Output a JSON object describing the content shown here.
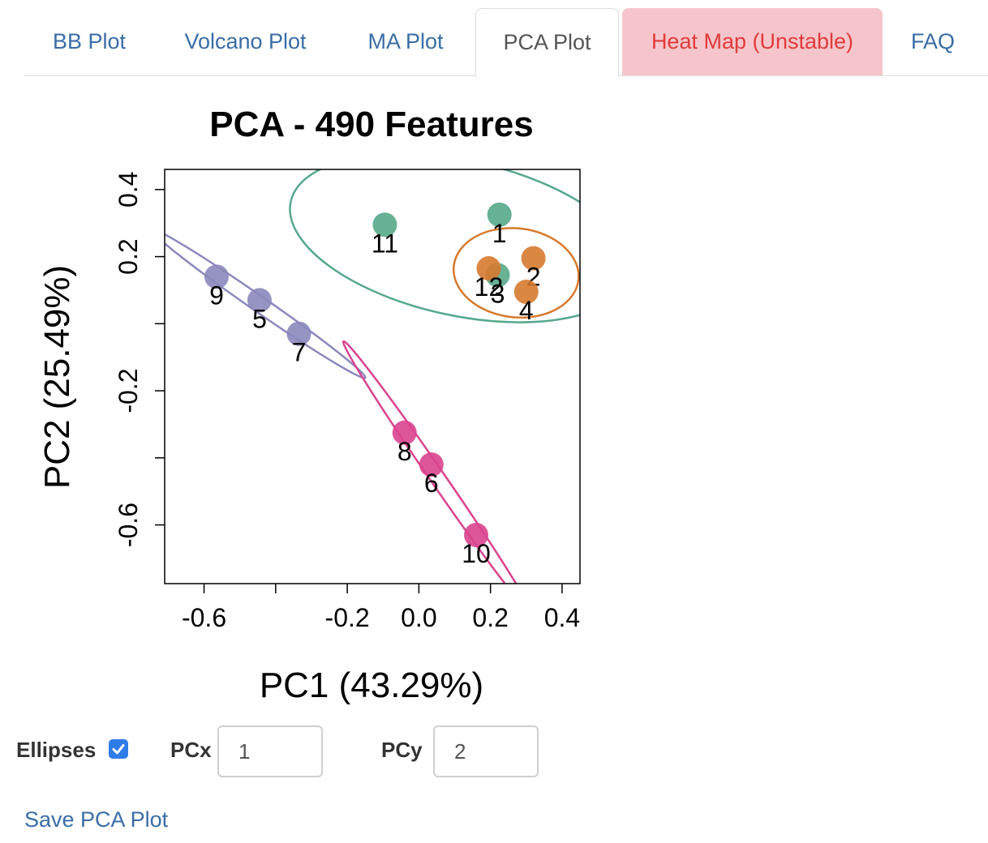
{
  "tabs": [
    {
      "label": "BB Plot"
    },
    {
      "label": "Volcano Plot"
    },
    {
      "label": "MA Plot"
    },
    {
      "label": "PCA Plot"
    },
    {
      "label": "Heat Map (Unstable)"
    },
    {
      "label": "FAQ"
    }
  ],
  "active_tab": "PCA Plot",
  "colors": {
    "green": "#57a98a",
    "orange": "#d67a2f",
    "purple": "#8b88bd",
    "magenta": "#d9448f",
    "link": "#3a6da6",
    "unstable_bg": "#f6c5cc",
    "unstable_text": "#e03b3b"
  },
  "chart_data": {
    "type": "scatter",
    "title": "PCA - 490 Features",
    "xlabel": "PC1 (43.29%)",
    "ylabel": "PC2 (25.49%)",
    "xlim": [
      -0.71,
      0.45
    ],
    "ylim": [
      -0.775,
      0.46
    ],
    "xticks": [
      -0.6,
      -0.4,
      -0.2,
      0.0,
      0.2,
      0.4
    ],
    "xtick_labels": [
      "-0.6",
      "",
      "-0.2",
      "0.0",
      "0.2",
      "0.4"
    ],
    "yticks": [
      0.4,
      0.2,
      0.0,
      -0.2,
      -0.4,
      -0.6
    ],
    "ytick_labels": [
      "0.4",
      "0.2",
      "",
      "-0.2",
      "",
      "-0.6"
    ],
    "grid": false,
    "points": [
      {
        "label": "1",
        "x": 0.225,
        "y": 0.325,
        "group": "green"
      },
      {
        "label": "11",
        "x": -0.095,
        "y": 0.295,
        "group": "green"
      },
      {
        "label": "3",
        "x": 0.22,
        "y": 0.145,
        "group": "green"
      },
      {
        "label": "12",
        "x": 0.195,
        "y": 0.165,
        "group": "orange"
      },
      {
        "label": "2",
        "x": 0.32,
        "y": 0.195,
        "group": "orange"
      },
      {
        "label": "4",
        "x": 0.3,
        "y": 0.095,
        "group": "orange"
      },
      {
        "label": "9",
        "x": -0.565,
        "y": 0.14,
        "group": "purple"
      },
      {
        "label": "5",
        "x": -0.445,
        "y": 0.07,
        "group": "purple"
      },
      {
        "label": "7",
        "x": -0.335,
        "y": -0.03,
        "group": "purple"
      },
      {
        "label": "8",
        "x": -0.04,
        "y": -0.325,
        "group": "magenta"
      },
      {
        "label": "6",
        "x": 0.035,
        "y": -0.42,
        "group": "magenta"
      },
      {
        "label": "10",
        "x": 0.16,
        "y": -0.63,
        "group": "magenta"
      }
    ]
  },
  "controls": {
    "ellipses_label": "Ellipses",
    "ellipses_checked": true,
    "pcx_label": "PCx",
    "pcx_value": "1",
    "pcy_label": "PCy",
    "pcy_value": "2",
    "save_label": "Save PCA Plot"
  }
}
